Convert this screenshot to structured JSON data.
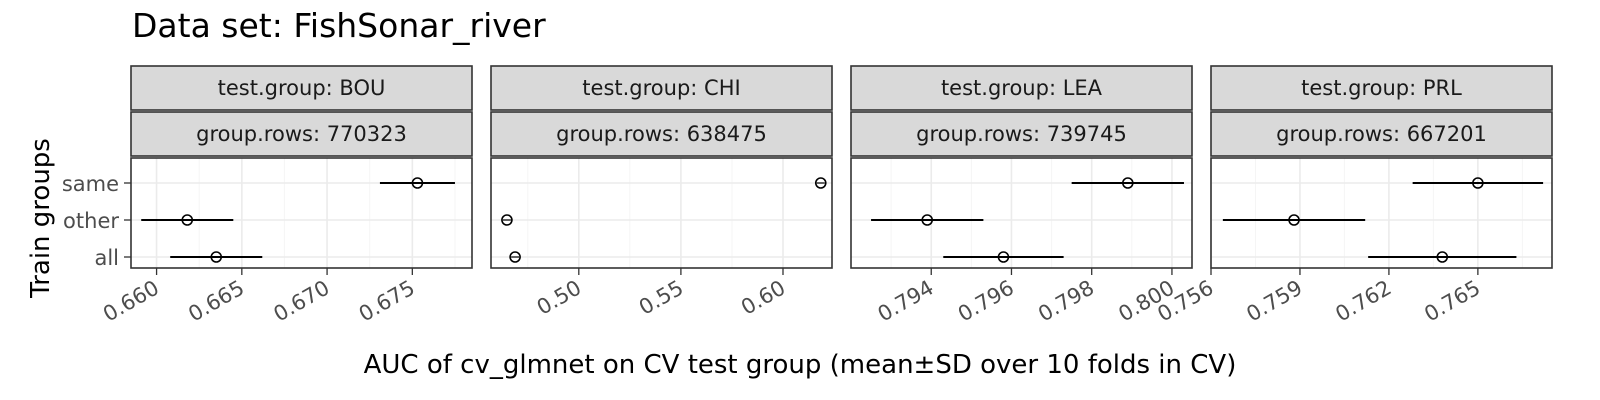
{
  "chart_data": {
    "type": "scatter",
    "title": "Data set: FishSonar_river",
    "xlabel": "AUC of cv_glmnet on CV test group (mean±SD over 10 folds in CV)",
    "ylabel": "Train groups",
    "categories": [
      "same",
      "other",
      "all"
    ],
    "panels": [
      {
        "strip_top": "test.group: BOU",
        "strip_bottom": "group.rows: 770323",
        "xlim": [
          0.6585,
          0.6785
        ],
        "ticks": [
          0.66,
          0.665,
          0.67,
          0.675
        ],
        "tick_labels": [
          "0.660",
          "0.665",
          "0.670",
          "0.675"
        ],
        "points": [
          {
            "group": "same",
            "mean": 0.6753,
            "sd": 0.0022
          },
          {
            "group": "other",
            "mean": 0.6618,
            "sd": 0.0027
          },
          {
            "group": "all",
            "mean": 0.6635,
            "sd": 0.0027
          }
        ]
      },
      {
        "strip_top": "test.group: CHI",
        "strip_bottom": "group.rows: 638475",
        "xlim": [
          0.457,
          0.624
        ],
        "ticks": [
          0.5,
          0.55,
          0.6
        ],
        "tick_labels": [
          "0.50",
          "0.55",
          "0.60"
        ],
        "points": [
          {
            "group": "same",
            "mean": 0.6185,
            "sd": 0.0
          },
          {
            "group": "other",
            "mean": 0.4648,
            "sd": 0.0
          },
          {
            "group": "all",
            "mean": 0.4688,
            "sd": 0.0
          }
        ]
      },
      {
        "strip_top": "test.group: LEA",
        "strip_bottom": "group.rows: 739745",
        "xlim": [
          0.792,
          0.8005
        ],
        "ticks": [
          0.794,
          0.796,
          0.798,
          0.8
        ],
        "tick_labels": [
          "0.794",
          "0.796",
          "0.798",
          "0.800"
        ],
        "points": [
          {
            "group": "same",
            "mean": 0.7989,
            "sd": 0.0014
          },
          {
            "group": "other",
            "mean": 0.7939,
            "sd": 0.0014
          },
          {
            "group": "all",
            "mean": 0.7958,
            "sd": 0.0015
          }
        ]
      },
      {
        "strip_top": "test.group: PRL",
        "strip_bottom": "group.rows: 667201",
        "xlim": [
          0.756,
          0.7675
        ],
        "ticks": [
          0.756,
          0.759,
          0.762,
          0.765
        ],
        "tick_labels": [
          "0.756",
          "0.759",
          "0.762",
          "0.765"
        ],
        "points": [
          {
            "group": "same",
            "mean": 0.765,
            "sd": 0.0022
          },
          {
            "group": "other",
            "mean": 0.7588,
            "sd": 0.0024
          },
          {
            "group": "all",
            "mean": 0.7638,
            "sd": 0.0025
          }
        ]
      }
    ],
    "grid": true,
    "legend": "none"
  },
  "colors": {
    "strip_fill": "#d9d9d9",
    "panel_border": "#333333",
    "grid_major": "#ebebeb",
    "grid_minor": "#f5f5f5",
    "tick_text": "#4d4d4d",
    "marks": "#000000"
  }
}
